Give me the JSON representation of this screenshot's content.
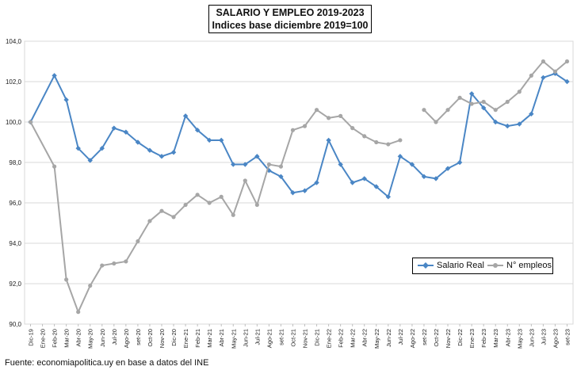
{
  "chart_data": {
    "type": "line",
    "title": "SALARIO Y EMPLEO 2019-2023",
    "subtitle": "Indices base diciembre 2019=100",
    "categories": [
      "Dic-19",
      "Ene-20",
      "Feb-20",
      "Mar-20",
      "Abr-20",
      "May-20",
      "Jun-20",
      "Jul-20",
      "Ago-20",
      "set-20",
      "Oct-20",
      "Nov-20",
      "Dic-20",
      "Ene-21",
      "Feb-21",
      "Mar-21",
      "Abr-21",
      "May-21",
      "Jun-21",
      "Jul-21",
      "Ago-21",
      "set-21",
      "Oct-21",
      "Nov-21",
      "Dic-21",
      "Ene-22",
      "Feb-22",
      "Mar-22",
      "Abr-22",
      "May-22",
      "Jun-22",
      "Jul-22",
      "Ago-22",
      "set-22",
      "Oct-22",
      "Nov-22",
      "Dic-22",
      "Ene-23",
      "Feb-23",
      "Mar-23",
      "Abr-23",
      "May-23",
      "Jun-23",
      "Jul-23",
      "Ago-23",
      "set-23"
    ],
    "ylim": [
      90,
      104
    ],
    "yticks": [
      "90,0",
      "92,0",
      "94,0",
      "96,0",
      "98,0",
      "100,0",
      "102,0",
      "104,0"
    ],
    "series": [
      {
        "name": "Salario Real",
        "color": "#4a86c5",
        "marker": "diamond",
        "values": [
          100.0,
          null,
          102.3,
          101.1,
          98.7,
          98.1,
          98.7,
          99.7,
          99.5,
          99.0,
          98.6,
          98.3,
          98.5,
          100.3,
          99.6,
          99.1,
          99.1,
          97.9,
          97.9,
          98.3,
          97.6,
          97.3,
          96.5,
          96.6,
          97.0,
          99.1,
          97.9,
          97.0,
          97.2,
          96.8,
          96.3,
          98.3,
          97.9,
          97.3,
          97.2,
          97.7,
          98.0,
          101.4,
          100.7,
          100.0,
          99.8,
          99.9,
          100.4,
          102.2,
          102.4,
          102.0
        ]
      },
      {
        "name": "N° empleos",
        "color": "#a6a6a6",
        "marker": "circle",
        "values": [
          100.0,
          null,
          97.8,
          92.2,
          90.6,
          91.9,
          92.9,
          93.0,
          93.1,
          94.1,
          95.1,
          95.6,
          95.3,
          95.9,
          96.4,
          96.0,
          96.3,
          95.4,
          97.1,
          95.9,
          97.9,
          97.8,
          99.6,
          99.8,
          100.6,
          100.2,
          100.3,
          99.7,
          99.3,
          99.0,
          98.9,
          99.1,
          null,
          100.6,
          100.0,
          100.6,
          101.2,
          100.9,
          101.0,
          100.6,
          101.0,
          101.5,
          102.3,
          103.0,
          102.5,
          103.0
        ]
      }
    ],
    "grid": true,
    "legend_position": "bottom-right"
  },
  "source": "Fuente: economiapolitica.uy en base a datos del INE"
}
